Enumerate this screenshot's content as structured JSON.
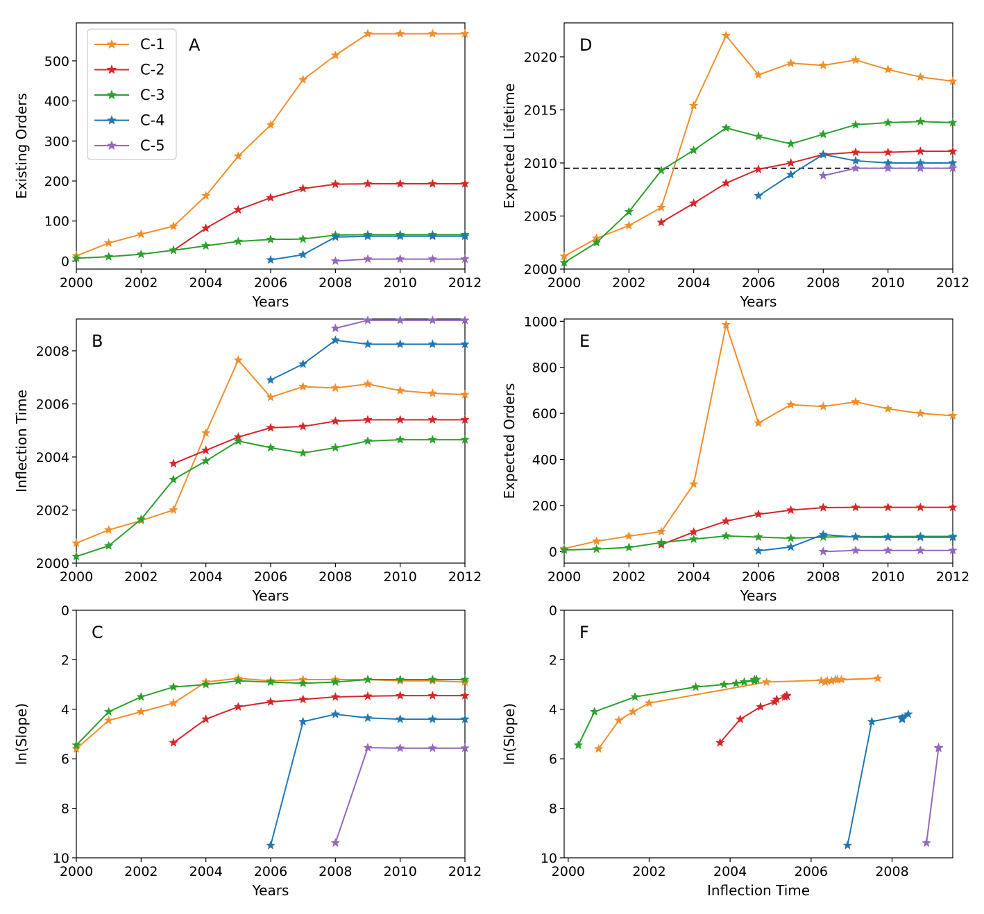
{
  "colors": {
    "C-1": "#f28e2b",
    "C-2": "#d62728",
    "C-3": "#2ca02c",
    "C-4": "#1f77b4",
    "C-5": "#9467bd"
  },
  "legend": {
    "entries": [
      "C-1",
      "C-2",
      "C-3",
      "C-4",
      "C-5"
    ]
  },
  "chart_data": [
    {
      "type": "line",
      "panel": "A",
      "xlabel": "Years",
      "ylabel": "Existing Orders",
      "xlim": [
        2000,
        2012
      ],
      "ylim": [
        -20,
        595
      ],
      "xticks": [
        2000,
        2002,
        2004,
        2006,
        2008,
        2010,
        2012
      ],
      "yticks": [
        0,
        100,
        200,
        300,
        400,
        500
      ],
      "yinverted": false,
      "legend": "top-left",
      "series": [
        {
          "name": "C-1",
          "x": [
            2000,
            2001,
            2002,
            2003,
            2004,
            2005,
            2006,
            2007,
            2008,
            2009,
            2010,
            2011,
            2012
          ],
          "y": [
            13,
            45,
            67,
            87,
            163,
            262,
            340,
            453,
            514,
            568,
            568,
            568,
            568
          ]
        },
        {
          "name": "C-2",
          "x": [
            2003,
            2004,
            2005,
            2006,
            2007,
            2008,
            2009,
            2010,
            2011,
            2012
          ],
          "y": [
            27,
            82,
            128,
            158,
            181,
            192,
            193,
            193,
            193,
            193
          ]
        },
        {
          "name": "C-3",
          "x": [
            2000,
            2001,
            2002,
            2003,
            2004,
            2005,
            2006,
            2007,
            2008,
            2009,
            2010,
            2011,
            2012
          ],
          "y": [
            7,
            11,
            17,
            27,
            38,
            49,
            54,
            55,
            65,
            66,
            66,
            66,
            66
          ]
        },
        {
          "name": "C-4",
          "x": [
            2006,
            2007,
            2008,
            2009,
            2010,
            2011,
            2012
          ],
          "y": [
            3,
            16,
            60,
            62,
            62,
            62,
            62
          ]
        },
        {
          "name": "C-5",
          "x": [
            2008,
            2009,
            2010,
            2011,
            2012
          ],
          "y": [
            0,
            5,
            5,
            5,
            5
          ]
        }
      ]
    },
    {
      "type": "line",
      "panel": "B",
      "xlabel": "Years",
      "ylabel": "Inflection Time",
      "xlim": [
        2000,
        2012
      ],
      "ylim": [
        2000,
        2009.2
      ],
      "xticks": [
        2000,
        2002,
        2004,
        2006,
        2008,
        2010,
        2012
      ],
      "yticks": [
        2000,
        2002,
        2004,
        2006,
        2008
      ],
      "yinverted": false,
      "series": [
        {
          "name": "C-1",
          "x": [
            2000,
            2001,
            2002,
            2003,
            2004,
            2005,
            2006,
            2007,
            2008,
            2009,
            2010,
            2011,
            2012
          ],
          "y": [
            2000.75,
            2001.25,
            2001.6,
            2002.0,
            2004.9,
            2007.65,
            2006.25,
            2006.65,
            2006.6,
            2006.75,
            2006.5,
            2006.4,
            2006.35
          ]
        },
        {
          "name": "C-2",
          "x": [
            2003,
            2004,
            2005,
            2006,
            2007,
            2008,
            2009,
            2010,
            2011,
            2012
          ],
          "y": [
            2003.75,
            2004.25,
            2004.75,
            2005.1,
            2005.15,
            2005.35,
            2005.4,
            2005.4,
            2005.4,
            2005.4
          ]
        },
        {
          "name": "C-3",
          "x": [
            2000,
            2001,
            2002,
            2003,
            2004,
            2005,
            2006,
            2007,
            2008,
            2009,
            2010,
            2011,
            2012
          ],
          "y": [
            2000.25,
            2000.65,
            2001.65,
            2003.15,
            2003.85,
            2004.6,
            2004.35,
            2004.15,
            2004.35,
            2004.6,
            2004.65,
            2004.65,
            2004.65
          ]
        },
        {
          "name": "C-4",
          "x": [
            2006,
            2007,
            2008,
            2009,
            2010,
            2011,
            2012
          ],
          "y": [
            2006.9,
            2007.5,
            2008.4,
            2008.25,
            2008.25,
            2008.25,
            2008.25
          ]
        },
        {
          "name": "C-5",
          "x": [
            2008,
            2009,
            2010,
            2011,
            2012
          ],
          "y": [
            2008.85,
            2009.15,
            2009.15,
            2009.15,
            2009.15
          ]
        }
      ]
    },
    {
      "type": "line",
      "panel": "C",
      "xlabel": "Years",
      "ylabel": "ln(Slope)",
      "xlim": [
        2000,
        2012
      ],
      "ylim": [
        10,
        0
      ],
      "xticks": [
        2000,
        2002,
        2004,
        2006,
        2008,
        2010,
        2012
      ],
      "yticks": [
        0,
        2,
        4,
        6,
        8,
        10
      ],
      "yinverted": true,
      "series": [
        {
          "name": "C-1",
          "x": [
            2000,
            2001,
            2002,
            2003,
            2004,
            2005,
            2006,
            2007,
            2008,
            2009,
            2010,
            2011,
            2012
          ],
          "y": [
            5.6,
            4.45,
            4.1,
            3.75,
            2.9,
            2.75,
            2.85,
            2.8,
            2.8,
            2.8,
            2.85,
            2.85,
            2.9
          ]
        },
        {
          "name": "C-2",
          "x": [
            2003,
            2004,
            2005,
            2006,
            2007,
            2008,
            2009,
            2010,
            2011,
            2012
          ],
          "y": [
            5.35,
            4.4,
            3.9,
            3.7,
            3.6,
            3.5,
            3.47,
            3.45,
            3.45,
            3.45
          ]
        },
        {
          "name": "C-3",
          "x": [
            2000,
            2001,
            2002,
            2003,
            2004,
            2005,
            2006,
            2007,
            2008,
            2009,
            2010,
            2011,
            2012
          ],
          "y": [
            5.45,
            4.1,
            3.5,
            3.1,
            3.0,
            2.85,
            2.9,
            2.95,
            2.9,
            2.8,
            2.8,
            2.8,
            2.8
          ]
        },
        {
          "name": "C-4",
          "x": [
            2006,
            2007,
            2008,
            2009,
            2010,
            2011,
            2012
          ],
          "y": [
            9.5,
            4.5,
            4.2,
            4.35,
            4.4,
            4.4,
            4.4
          ]
        },
        {
          "name": "C-5",
          "x": [
            2008,
            2009,
            2010,
            2011,
            2012
          ],
          "y": [
            9.4,
            5.55,
            5.57,
            5.57,
            5.57
          ]
        }
      ]
    },
    {
      "type": "line",
      "panel": "D",
      "xlabel": "Years",
      "ylabel": "Expected Lifetime",
      "xlim": [
        2000,
        2012
      ],
      "ylim": [
        2000,
        2023.2
      ],
      "xticks": [
        2000,
        2002,
        2004,
        2006,
        2008,
        2010,
        2012
      ],
      "yticks": [
        2000,
        2005,
        2010,
        2015,
        2020
      ],
      "yinverted": false,
      "hline": 2009.5,
      "series": [
        {
          "name": "C-1",
          "x": [
            2000,
            2001,
            2002,
            2003,
            2004,
            2005,
            2006,
            2007,
            2008,
            2009,
            2010,
            2011,
            2012
          ],
          "y": [
            2001.2,
            2002.9,
            2004.1,
            2005.8,
            2015.4,
            2022.0,
            2018.3,
            2019.4,
            2019.2,
            2019.7,
            2018.8,
            2018.1,
            2017.7
          ]
        },
        {
          "name": "C-2",
          "x": [
            2003,
            2004,
            2005,
            2006,
            2007,
            2008,
            2009,
            2010,
            2011,
            2012
          ],
          "y": [
            2004.4,
            2006.2,
            2008.1,
            2009.4,
            2010.0,
            2010.8,
            2011.0,
            2011.0,
            2011.1,
            2011.1
          ]
        },
        {
          "name": "C-3",
          "x": [
            2000,
            2001,
            2002,
            2003,
            2004,
            2005,
            2006,
            2007,
            2008,
            2009,
            2010,
            2011,
            2012
          ],
          "y": [
            2000.6,
            2002.5,
            2005.4,
            2009.3,
            2011.2,
            2013.3,
            2012.5,
            2011.8,
            2012.7,
            2013.6,
            2013.8,
            2013.9,
            2013.8
          ]
        },
        {
          "name": "C-4",
          "x": [
            2006,
            2007,
            2008,
            2009,
            2010,
            2011,
            2012
          ],
          "y": [
            2006.9,
            2008.9,
            2010.8,
            2010.2,
            2010.0,
            2010.0,
            2010.0
          ]
        },
        {
          "name": "C-5",
          "x": [
            2008,
            2009,
            2010,
            2011,
            2012
          ],
          "y": [
            2008.8,
            2009.5,
            2009.5,
            2009.5,
            2009.5
          ]
        }
      ]
    },
    {
      "type": "line",
      "panel": "E",
      "xlabel": "Years",
      "ylabel": "Expected Orders",
      "xlim": [
        2000,
        2012
      ],
      "ylim": [
        -50,
        1010
      ],
      "xticks": [
        2000,
        2002,
        2004,
        2006,
        2008,
        2010,
        2012
      ],
      "yticks": [
        0,
        200,
        400,
        600,
        800,
        1000
      ],
      "yinverted": false,
      "series": [
        {
          "name": "C-1",
          "x": [
            2000,
            2001,
            2002,
            2003,
            2004,
            2005,
            2006,
            2007,
            2008,
            2009,
            2010,
            2011,
            2012
          ],
          "y": [
            13,
            45,
            67,
            87,
            293,
            985,
            558,
            638,
            630,
            650,
            620,
            600,
            590
          ]
        },
        {
          "name": "C-2",
          "x": [
            2003,
            2004,
            2005,
            2006,
            2007,
            2008,
            2009,
            2010,
            2011,
            2012
          ],
          "y": [
            30,
            85,
            132,
            162,
            180,
            191,
            192,
            192,
            192,
            192
          ]
        },
        {
          "name": "C-3",
          "x": [
            2000,
            2001,
            2002,
            2003,
            2004,
            2005,
            2006,
            2007,
            2008,
            2009,
            2010,
            2011,
            2012
          ],
          "y": [
            7,
            11,
            18,
            39,
            54,
            68,
            63,
            58,
            63,
            65,
            65,
            66,
            66
          ]
        },
        {
          "name": "C-4",
          "x": [
            2006,
            2007,
            2008,
            2009,
            2010,
            2011,
            2012
          ],
          "y": [
            3,
            20,
            74,
            63,
            62,
            62,
            62
          ]
        },
        {
          "name": "C-5",
          "x": [
            2008,
            2009,
            2010,
            2011,
            2012
          ],
          "y": [
            0,
            5,
            5,
            5,
            5
          ]
        }
      ]
    },
    {
      "type": "line",
      "panel": "F",
      "xlabel": "Inflection Time",
      "ylabel": "ln(Slope)",
      "xlim": [
        1999.9,
        2009.5
      ],
      "ylim": [
        10,
        0
      ],
      "xticks": [
        2000,
        2002,
        2004,
        2006,
        2008
      ],
      "yticks": [
        0,
        2,
        4,
        6,
        8,
        10
      ],
      "yinverted": true,
      "series": [
        {
          "name": "C-1",
          "x": [
            2000.75,
            2001.25,
            2001.6,
            2002.0,
            2004.9,
            2007.65,
            2006.25,
            2006.65,
            2006.6,
            2006.75,
            2006.5,
            2006.4,
            2006.35
          ],
          "y": [
            5.6,
            4.45,
            4.1,
            3.75,
            2.9,
            2.75,
            2.85,
            2.8,
            2.8,
            2.8,
            2.85,
            2.85,
            2.9
          ]
        },
        {
          "name": "C-2",
          "x": [
            2003.75,
            2004.25,
            2004.75,
            2005.1,
            2005.15,
            2005.35,
            2005.4,
            2005.4,
            2005.4,
            2005.4
          ],
          "y": [
            5.35,
            4.4,
            3.9,
            3.7,
            3.6,
            3.5,
            3.47,
            3.45,
            3.45,
            3.45
          ]
        },
        {
          "name": "C-3",
          "x": [
            2000.25,
            2000.65,
            2001.65,
            2003.15,
            2003.85,
            2004.6,
            2004.35,
            2004.15,
            2004.35,
            2004.6,
            2004.65,
            2004.65,
            2004.65
          ],
          "y": [
            5.45,
            4.1,
            3.5,
            3.1,
            3.0,
            2.85,
            2.9,
            2.95,
            2.9,
            2.8,
            2.8,
            2.8,
            2.8
          ]
        },
        {
          "name": "C-4",
          "x": [
            2006.9,
            2007.5,
            2008.4,
            2008.25,
            2008.25,
            2008.25,
            2008.25
          ],
          "y": [
            9.5,
            4.5,
            4.2,
            4.35,
            4.4,
            4.4,
            4.4
          ]
        },
        {
          "name": "C-5",
          "x": [
            2008.85,
            2009.15,
            2009.15,
            2009.15,
            2009.15
          ],
          "y": [
            9.4,
            5.55,
            5.57,
            5.57,
            5.57
          ]
        }
      ]
    }
  ]
}
